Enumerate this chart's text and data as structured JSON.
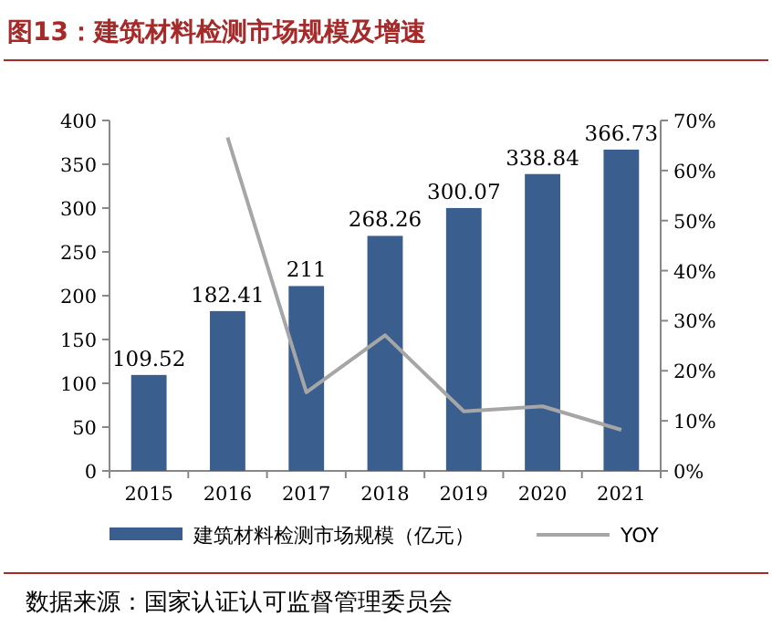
{
  "chart_data": {
    "type": "bar",
    "title": "图13：建筑材料检测市场规模及增速",
    "categories": [
      "2015",
      "2016",
      "2017",
      "2018",
      "2019",
      "2020",
      "2021"
    ],
    "series": [
      {
        "name": "建筑材料检测市场规模（亿元）",
        "color": "#3a5f8f",
        "values": [
          109.52,
          182.41,
          211,
          268.26,
          300.07,
          338.84,
          366.73
        ],
        "value_labels": [
          "109.52",
          "182.41",
          "211",
          "268.26",
          "300.07",
          "338.84",
          "366.73"
        ]
      },
      {
        "name": "YOY",
        "type": "line",
        "axis": "y2",
        "color": "#a6a6a6",
        "values": [
          null,
          66.6,
          15.7,
          27.1,
          11.9,
          12.9,
          8.2
        ]
      }
    ],
    "ylim": [
      0,
      400
    ],
    "yticks": [
      0,
      50,
      100,
      150,
      200,
      250,
      300,
      350,
      400
    ],
    "y2lim": [
      0,
      70
    ],
    "y2ticks": [
      {
        "value": 0,
        "label": "0%"
      },
      {
        "value": 10,
        "label": "10%"
      },
      {
        "value": 20,
        "label": "20%"
      },
      {
        "value": 30,
        "label": "30%"
      },
      {
        "value": 40,
        "label": "40%"
      },
      {
        "value": 50,
        "label": "50%"
      },
      {
        "value": 60,
        "label": "60%"
      },
      {
        "value": 70,
        "label": "70%"
      }
    ],
    "grid": false,
    "legend": "bottom",
    "marker": "none",
    "annotations": [
      "数据来源：国家认证认可监督管理委员会"
    ]
  }
}
